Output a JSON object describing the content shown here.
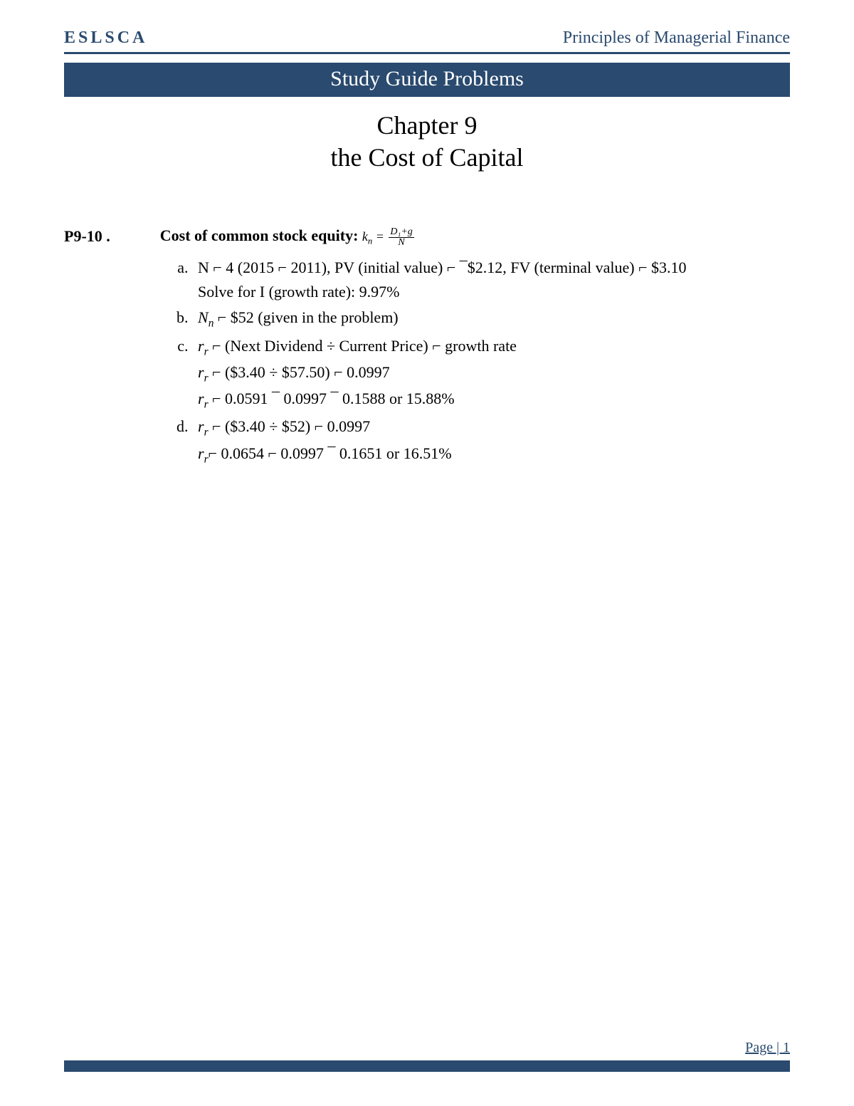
{
  "header": {
    "left": "ESLSCA",
    "right": "Principles of Managerial Finance"
  },
  "banner": "Study Guide Problems",
  "chapter": {
    "line1": "Chapter 9",
    "line2": "the Cost of Capital"
  },
  "problem": {
    "id": "P9-10 .",
    "title": "Cost of common stock equity:  ",
    "formula_left": "k",
    "formula_left_sub": "n",
    "formula_eq": " = ",
    "formula_num": "D₁+g",
    "formula_den": "N",
    "items": {
      "a": {
        "line1": "N ⌐ 4 (2015 ⌐ 2011), PV (initial value) ⌐ ¯$2.12, FV (terminal value) ⌐ $3.10",
        "line2": "Solve for I (growth rate): 9.97%"
      },
      "b": {
        "var": "N",
        "sub": "n",
        "rest": " ⌐ $52 (given in the problem)"
      },
      "c": {
        "l1_var": "r",
        "l1_sub": "r",
        "l1_rest": " ⌐ (Next Dividend ÷ Current Price) ⌐ growth rate",
        "l2_var": "r",
        "l2_sub": "r",
        "l2_rest": " ⌐ ($3.40 ÷ $57.50) ⌐ 0.0997",
        "l3_var": "r",
        "l3_sub": "r",
        "l3_rest": " ⌐ 0.0591 ¯ 0.0997 ¯ 0.1588 or 15.88%"
      },
      "d": {
        "l1_var": "r",
        "l1_sub": "r",
        "l1_rest": " ⌐ ($3.40 ÷ $52) ⌐ 0.0997",
        "l2_var": "r",
        "l2_sub": "r",
        "l2_rest": "⌐ 0.0654 ⌐ 0.0997 ¯ 0.1651 or 16.51%"
      }
    }
  },
  "footer": {
    "page_label": "Page | 1"
  },
  "colors": {
    "brand": "#2a4a6f",
    "text": "#000000",
    "bg": "#ffffff"
  }
}
